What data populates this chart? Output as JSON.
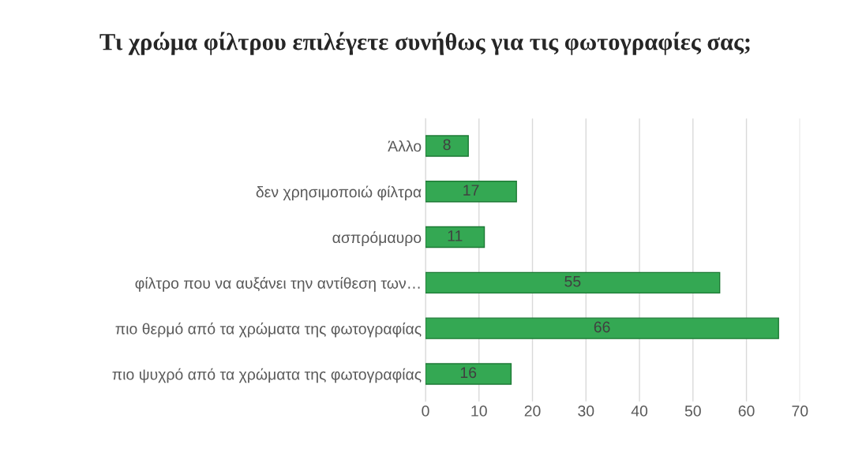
{
  "chart_data": {
    "type": "bar",
    "orientation": "horizontal",
    "title": "Τι χρώμα φίλτρου επιλέγετε συνήθως για τις φωτογραφίες σας;",
    "categories": [
      "Άλλο",
      "δεν χρησιμοποιώ φίλτρα",
      "ασπρόμαυρο",
      "φίλτρο που να αυξάνει την αντίθεση των…",
      "πιο θερμό από τα χρώματα της φωτογραφίας",
      "πιο ψυχρό από τα χρώματα της φωτογραφίας"
    ],
    "values": [
      8,
      17,
      11,
      55,
      66,
      16
    ],
    "color": "#34a853",
    "xlim": [
      0,
      70
    ],
    "xticks": [
      0,
      10,
      20,
      30,
      40,
      50,
      60,
      70
    ],
    "grid": "x",
    "data_labels": true
  }
}
